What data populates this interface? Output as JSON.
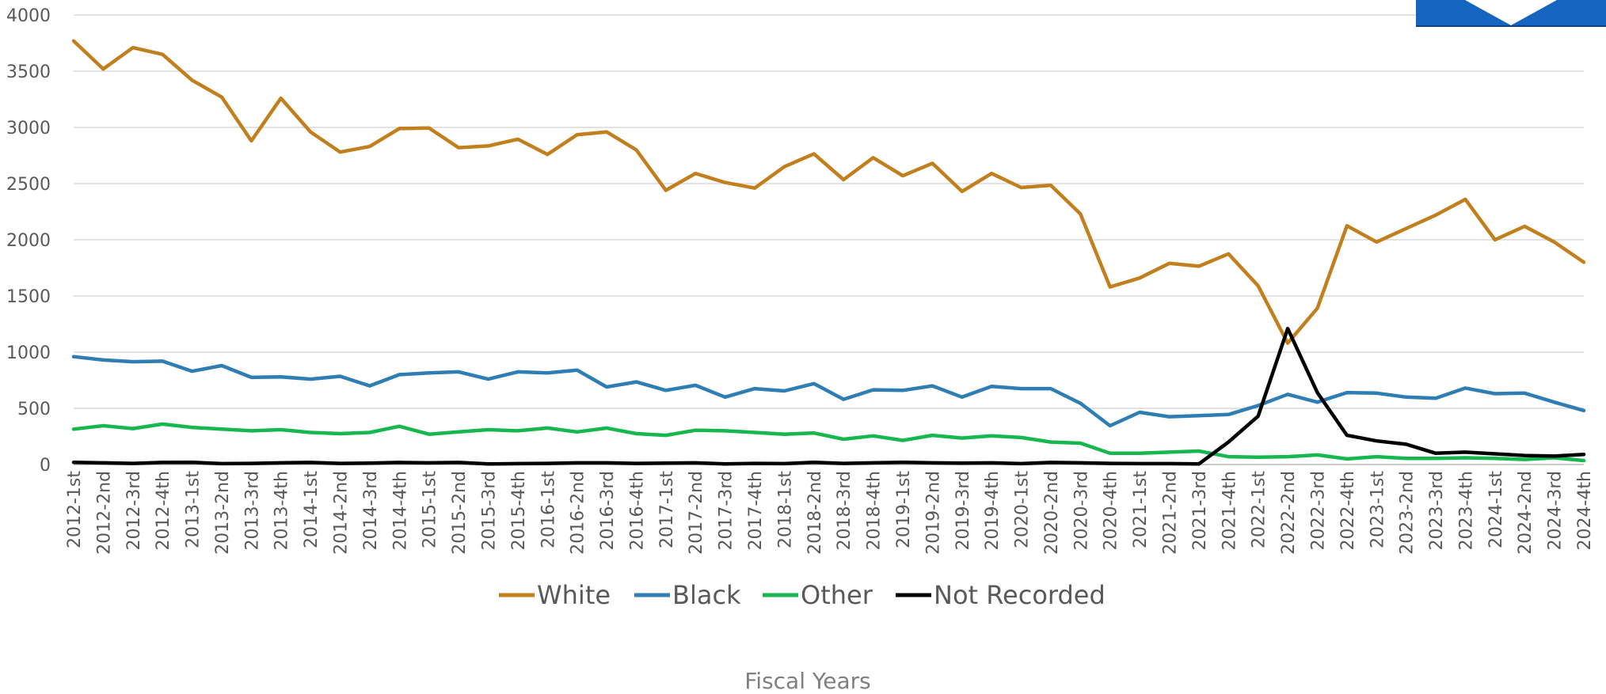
{
  "chart_data": {
    "type": "line",
    "xlabel": "Fiscal Years",
    "ylabel": "",
    "ylim": [
      0,
      4000
    ],
    "yticks": [
      0,
      500,
      1000,
      1500,
      2000,
      2500,
      3000,
      3500,
      4000
    ],
    "grid": "horizontal",
    "legend_position": "bottom",
    "categories": [
      "2012-1st",
      "2012-2nd",
      "2012-3rd",
      "2012-4th",
      "2013-1st",
      "2013-2nd",
      "2013-3rd",
      "2013-4th",
      "2014-1st",
      "2014-2nd",
      "2014-3rd",
      "2014-4th",
      "2015-1st",
      "2015-2nd",
      "2015-3rd",
      "2015-4th",
      "2016-1st",
      "2016-2nd",
      "2016-3rd",
      "2016-4th",
      "2017-1st",
      "2017-2nd",
      "2017-3rd",
      "2017-4th",
      "2018-1st",
      "2018-2nd",
      "2018-3rd",
      "2018-4th",
      "2019-1st",
      "2019-2nd",
      "2019-3rd",
      "2019-4th",
      "2020-1st",
      "2020-2nd",
      "2020-3rd",
      "2020-4th",
      "2021-1st",
      "2021-2nd",
      "2021-3rd",
      "2021-4th",
      "2022-1st",
      "2022-2nd",
      "2022-3rd",
      "2022-4th",
      "2023-1st",
      "2023-2nd",
      "2023-3rd",
      "2023-4th",
      "2024-1st",
      "2024-2nd",
      "2024-3rd",
      "2024-4th"
    ],
    "series": [
      {
        "name": "White",
        "color": "#C17F1E",
        "values": [
          3770,
          3520,
          3710,
          3650,
          3420,
          3270,
          2880,
          3260,
          2960,
          2780,
          2830,
          2990,
          2995,
          2820,
          2835,
          2895,
          2760,
          2935,
          2960,
          2800,
          2440,
          2590,
          2510,
          2460,
          2650,
          2765,
          2535,
          2730,
          2570,
          2680,
          2430,
          2590,
          2465,
          2485,
          2230,
          1580,
          1660,
          1790,
          1765,
          1875,
          1590,
          1080,
          1390,
          2125,
          1980,
          2100,
          2220,
          2360,
          2000,
          2120,
          1980,
          1800
        ]
      },
      {
        "name": "Black",
        "color": "#2E7EB3",
        "values": [
          960,
          930,
          915,
          920,
          830,
          880,
          775,
          780,
          760,
          785,
          700,
          800,
          815,
          825,
          760,
          825,
          815,
          840,
          690,
          735,
          660,
          705,
          600,
          675,
          655,
          720,
          580,
          665,
          660,
          700,
          600,
          695,
          675,
          675,
          545,
          345,
          465,
          425,
          435,
          445,
          525,
          625,
          555,
          640,
          635,
          600,
          590,
          680,
          630,
          635,
          555,
          480
        ]
      },
      {
        "name": "Other",
        "color": "#17B750",
        "values": [
          315,
          345,
          320,
          360,
          330,
          315,
          300,
          310,
          285,
          275,
          285,
          340,
          270,
          290,
          310,
          300,
          325,
          290,
          325,
          275,
          260,
          305,
          300,
          285,
          270,
          280,
          225,
          255,
          215,
          260,
          235,
          255,
          240,
          200,
          190,
          100,
          100,
          110,
          120,
          70,
          65,
          70,
          85,
          50,
          70,
          55,
          55,
          60,
          55,
          45,
          60,
          35
        ]
      },
      {
        "name": "Not Recorded",
        "color": "#000000",
        "values": [
          20,
          15,
          10,
          18,
          20,
          8,
          10,
          15,
          18,
          10,
          12,
          18,
          15,
          18,
          5,
          8,
          10,
          15,
          15,
          10,
          12,
          15,
          5,
          10,
          8,
          20,
          10,
          15,
          20,
          15,
          12,
          15,
          8,
          18,
          15,
          10,
          8,
          8,
          5,
          200,
          430,
          1210,
          640,
          260,
          210,
          180,
          100,
          110,
          95,
          80,
          75,
          90
        ]
      }
    ]
  }
}
